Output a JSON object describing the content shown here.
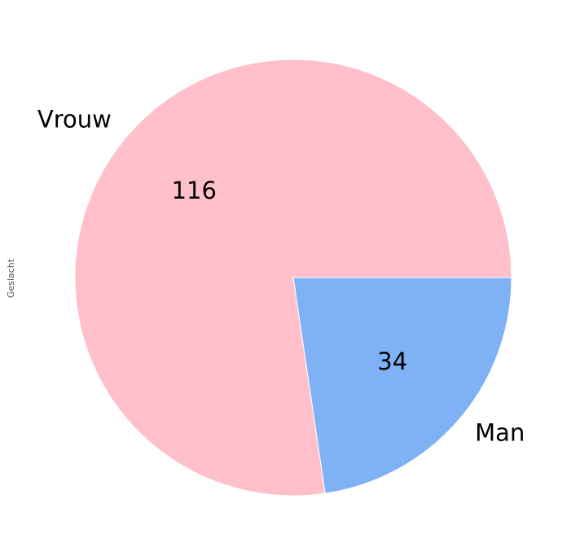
{
  "chart_data": {
    "type": "pie",
    "ylabel": "Geslacht",
    "categories": [
      "Man",
      "Vrouw"
    ],
    "values": [
      34,
      116
    ],
    "value_labels": [
      "34",
      "116"
    ],
    "colors": [
      "#7fb1f5",
      "#ffc0cb"
    ],
    "start_angle_deg": 0,
    "direction": "clockwise"
  }
}
